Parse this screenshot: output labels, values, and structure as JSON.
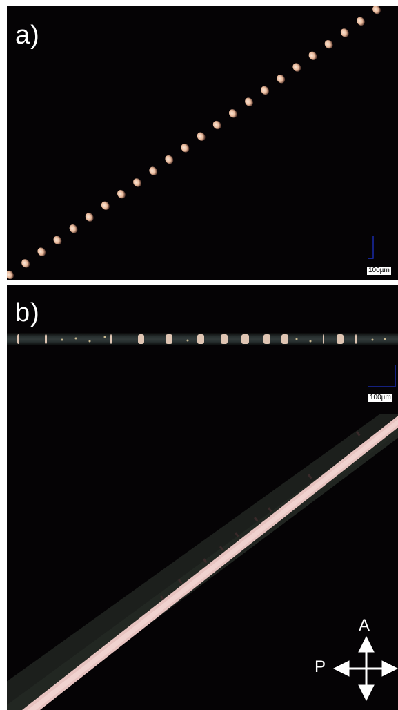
{
  "panels": {
    "a": {
      "label": "a)",
      "scale_label": "100µm"
    },
    "b": {
      "label": "b)",
      "scale_label": "100µm"
    }
  },
  "polarizer": {
    "analyzer_label": "A",
    "polarizer_label": "P"
  },
  "colors": {
    "background": "#050305",
    "fiber_pink": "#e7c3c0",
    "dot_peach": "#f0c8a8",
    "scalebar_blue": "#1a2aa8"
  }
}
